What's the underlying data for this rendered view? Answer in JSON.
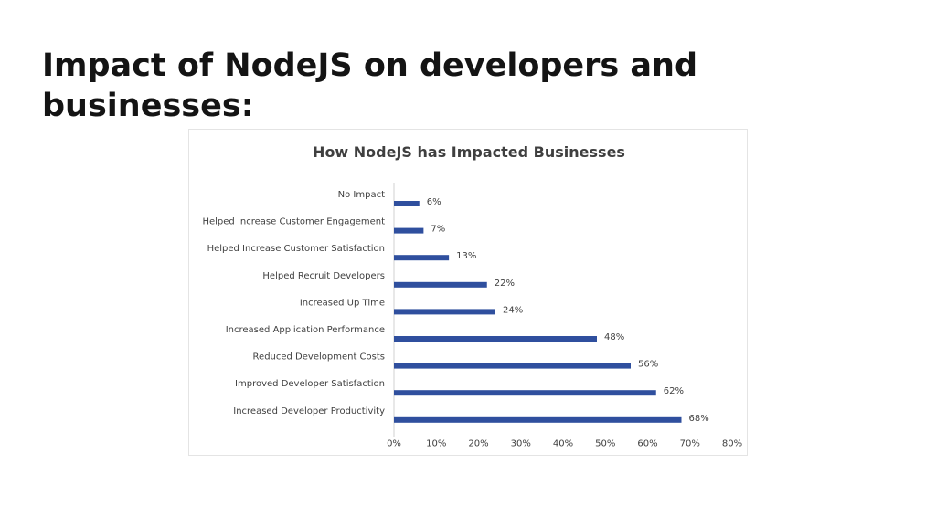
{
  "slide": {
    "title": "Impact of NodeJS on developers and businesses:"
  },
  "chart_data": {
    "type": "bar",
    "orientation": "horizontal",
    "title": "How NodeJS has Impacted Businesses",
    "xlabel": "",
    "ylabel": "",
    "categories": [
      "No Impact",
      "Helped Increase Customer Engagement",
      "Helped Increase Customer Satisfaction",
      "Helped Recruit Developers",
      "Increased Up Time",
      "Increased Application Performance",
      "Reduced Development Costs",
      "Improved Developer Satisfaction",
      "Increased Developer Productivity"
    ],
    "values": [
      6,
      7,
      13,
      22,
      24,
      48,
      56,
      62,
      68
    ],
    "value_labels": [
      "6%",
      "7%",
      "13%",
      "22%",
      "24%",
      "48%",
      "56%",
      "62%",
      "68%"
    ],
    "xlim": [
      0,
      80
    ],
    "x_ticks": [
      0,
      10,
      20,
      30,
      40,
      50,
      60,
      70,
      80
    ],
    "x_tick_labels": [
      "0%",
      "10%",
      "20%",
      "30%",
      "40%",
      "50%",
      "60%",
      "70%",
      "80%"
    ],
    "grid": false,
    "legend": "none",
    "colors": {
      "bar": "#2f4f9e",
      "text": "#404040",
      "title": "#3f3f3f"
    }
  }
}
